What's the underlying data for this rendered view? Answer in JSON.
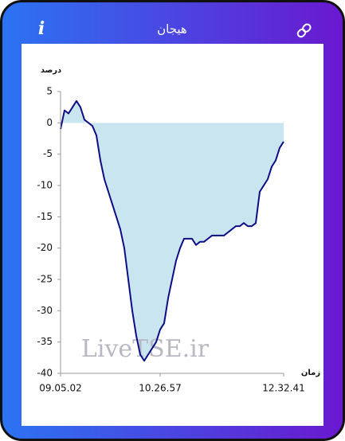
{
  "header": {
    "title": "هیجان",
    "info_icon": "i"
  },
  "chart_data": {
    "type": "area",
    "y_label": "درصد",
    "x_label": "زمان",
    "watermark": "LiveTSE.ir",
    "categories": [
      "09.05.02",
      null,
      null,
      null,
      null,
      null,
      null,
      null,
      null,
      null,
      null,
      null,
      null,
      null,
      null,
      null,
      null,
      null,
      null,
      null,
      null,
      null,
      null,
      null,
      null,
      "10.26.57",
      null,
      null,
      null,
      null,
      null,
      null,
      null,
      null,
      null,
      null,
      null,
      null,
      null,
      null,
      null,
      null,
      null,
      null,
      null,
      null,
      null,
      null,
      null,
      null,
      null,
      null,
      null,
      null,
      null,
      null,
      "12.32.41"
    ],
    "series": [
      {
        "color": "#0d0d85",
        "fill": "#c9e6f0",
        "values": [
          -1,
          2,
          1.5,
          2.5,
          3.5,
          2.5,
          0.5,
          0,
          -0.5,
          -2,
          -6,
          -9,
          -11,
          -13,
          -15,
          -17,
          -20,
          -25,
          -30,
          -34,
          -37,
          -38,
          -37,
          -36,
          -35,
          -33,
          -32,
          -28,
          -25,
          -22,
          -20,
          -18.5,
          -18.5,
          -18.5,
          -19.5,
          -19,
          -19,
          -18.5,
          -18,
          -18,
          -18,
          -18,
          -17.5,
          -17,
          -16.5,
          -16.5,
          -16,
          -16.5,
          -16.5,
          -16,
          -11,
          -10,
          -9,
          -7,
          -6,
          -4,
          -3
        ]
      }
    ],
    "ylim": [
      -40,
      5
    ],
    "yticks": [
      5,
      0,
      -5,
      -10,
      -15,
      -20,
      -25,
      -30,
      -35,
      -40
    ]
  }
}
